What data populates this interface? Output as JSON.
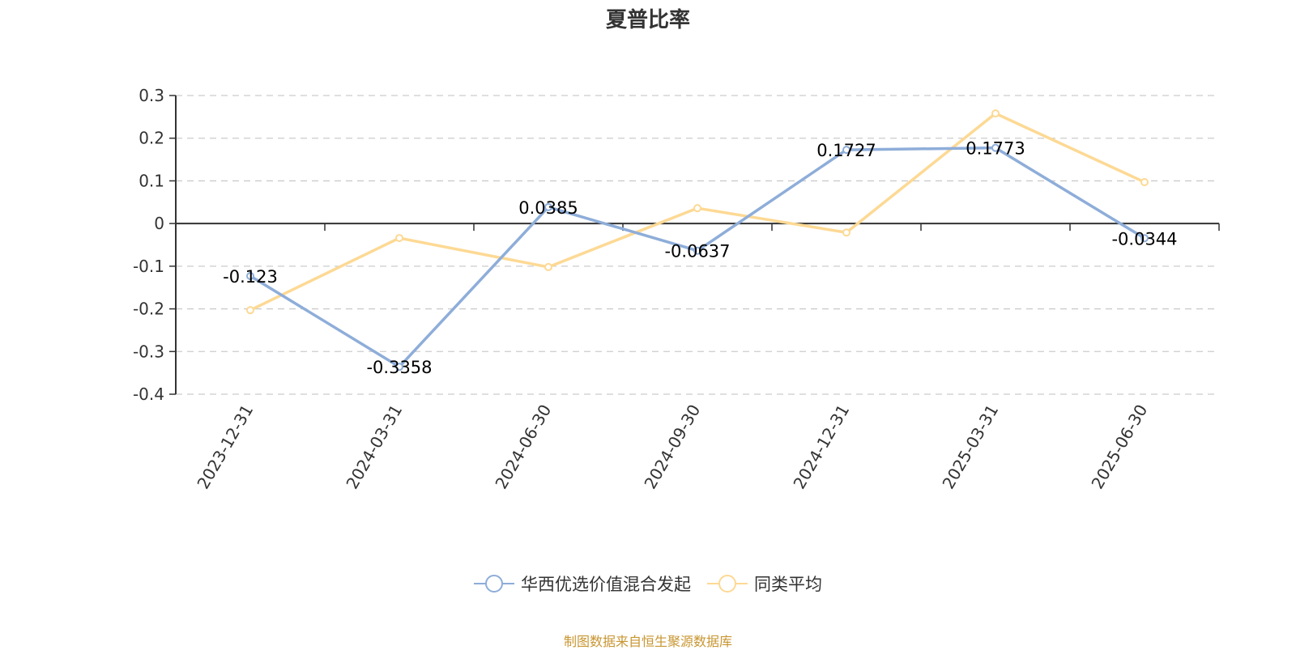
{
  "title": "夏普比率",
  "legend": [
    {
      "label": "华西优选价值混合发起",
      "color": "#8eadd9"
    },
    {
      "label": "同类平均",
      "color": "#fdd994"
    }
  ],
  "source_note": "制图数据来自恒生聚源数据库",
  "chart_data": {
    "type": "line",
    "title": "夏普比率",
    "xlabel": "",
    "ylabel": "",
    "categories": [
      "2023-12-31",
      "2024-03-31",
      "2024-06-30",
      "2024-09-30",
      "2024-12-31",
      "2025-03-31",
      "2025-06-30"
    ],
    "series": [
      {
        "name": "华西优选价值混合发起",
        "color": "#8eadd9",
        "values": [
          -0.123,
          -0.3358,
          0.0385,
          -0.0637,
          0.1727,
          0.1773,
          -0.0344
        ],
        "labels_shown": true
      },
      {
        "name": "同类平均",
        "color": "#fdd994",
        "values": [
          -0.203,
          -0.034,
          -0.102,
          0.036,
          -0.021,
          0.258,
          0.097
        ],
        "labels_shown": false
      }
    ],
    "ylim": [
      -0.4,
      0.3
    ],
    "yticks": [
      0.3,
      0.2,
      0.1,
      0,
      -0.1,
      -0.2,
      -0.3,
      -0.4
    ],
    "ytick_labels": [
      "0.3",
      "0.2",
      "0.1",
      "0",
      "-0.1",
      "-0.2",
      "-0.3",
      "-0.4"
    ],
    "grid": "horizontal dashed",
    "legend_position": "bottom",
    "x_label_rotation": -60
  }
}
